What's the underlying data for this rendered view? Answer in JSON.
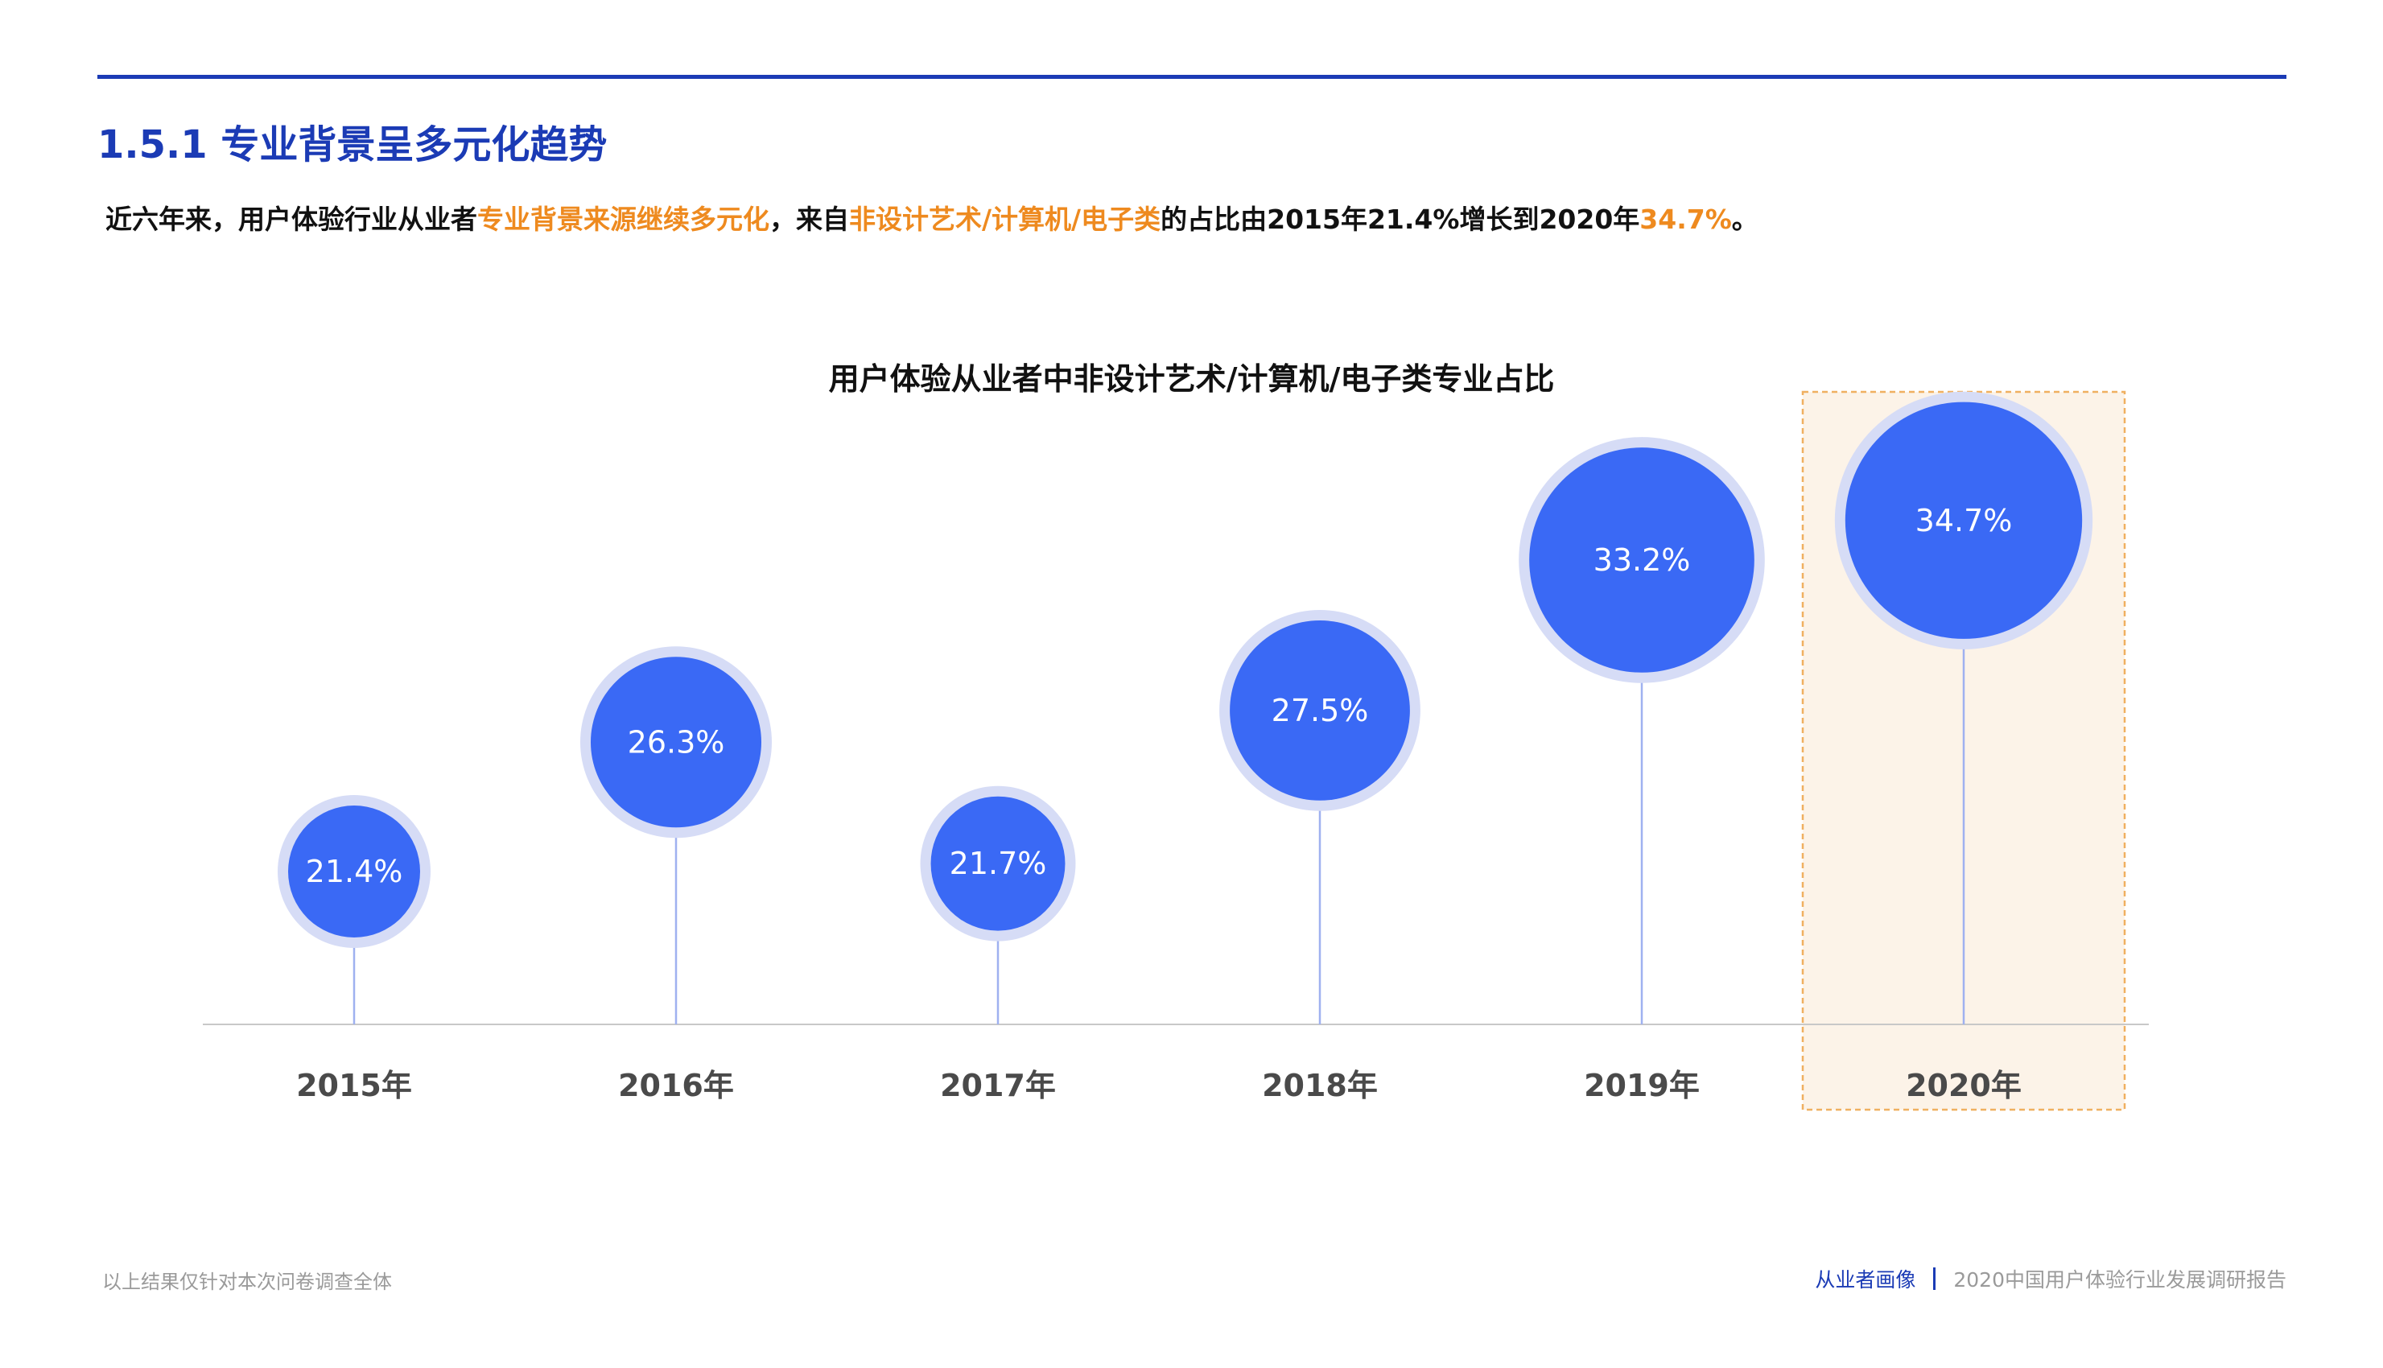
{
  "header": {
    "section_title": "1.5.1 专业背景呈多元化趋势"
  },
  "summary": {
    "part1": "近六年来，用户体验行业从业者",
    "highlight1": "专业背景来源继续多元化",
    "part2": "，来自",
    "highlight2": "非设计艺术/计算机/电子类",
    "part3": "的占比由2015年21.4%增长到2020年",
    "highlight3": "34.7%",
    "part4": "。"
  },
  "colors": {
    "brand_blue": "#1b3bb5",
    "bubble_blue": "#3a69f5",
    "bubble_halo": "#d6dcf6",
    "stem": "#9fb1f0",
    "highlight_orange": "#ee8a1f",
    "highlight_box_fill": "#fcf3e8",
    "highlight_box_border": "#f0b060",
    "axis": "#c8c8c8",
    "label_gray": "#4a4a4a"
  },
  "chart_data": {
    "type": "bubble-lollipop",
    "title": "用户体验从业者中非设计艺术/计算机/电子类专业占比",
    "categories": [
      "2015年",
      "2016年",
      "2017年",
      "2018年",
      "2019年",
      "2020年"
    ],
    "values": [
      21.4,
      26.3,
      21.7,
      27.5,
      33.2,
      34.7
    ],
    "value_labels": [
      "21.4%",
      "26.3%",
      "21.7%",
      "27.5%",
      "33.2%",
      "34.7%"
    ],
    "unit": "%",
    "highlighted_category": "2020年"
  },
  "footer": {
    "note": "以上结果仅针对本次问卷调查全体",
    "section": "从业者画像",
    "report": "2020中国用户体验行业发展调研报告"
  }
}
